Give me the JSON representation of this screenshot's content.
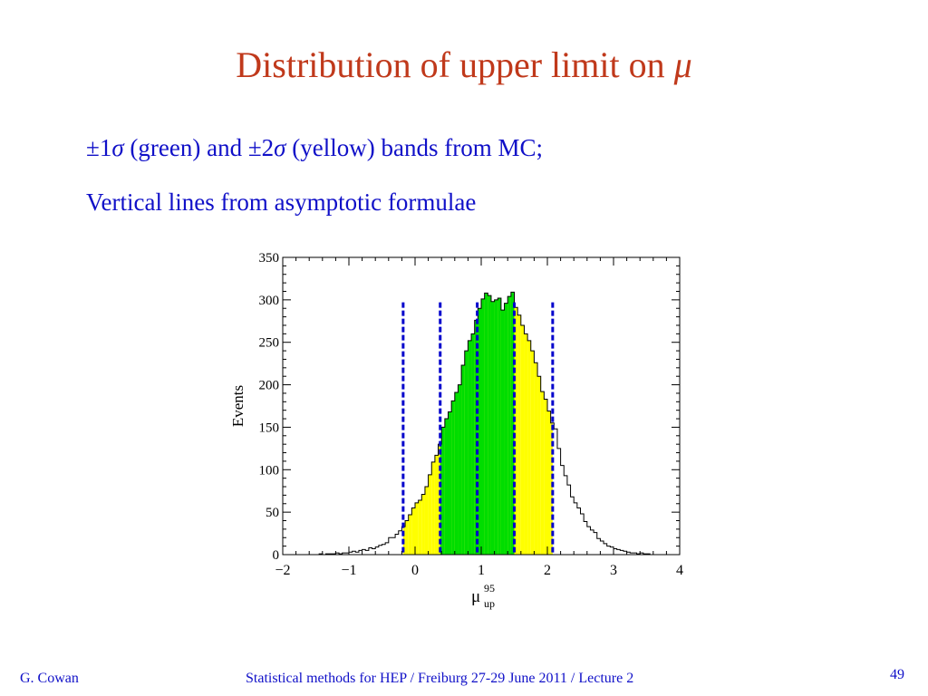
{
  "slide": {
    "title": "Distribution of upper limit on",
    "title_symbol": "μ",
    "bullet1": {
      "part1": "±1",
      "sym1": "σ",
      "part2": "(green) and",
      "part3": "±2",
      "sym2": "σ",
      "part4": "(yellow) bands from MC;"
    },
    "line2": "Vertical lines from asymptotic formulae",
    "footer_left": "G. Cowan",
    "footer_center": "Statistical methods for HEP / Freiburg 27-29 June 2011 / Lecture 2",
    "page_number": "49"
  },
  "chart_data": {
    "type": "bar",
    "xlabel": "μ",
    "xlabel_sup": "95",
    "xlabel_sub": "up",
    "ylabel": "Events",
    "xlim": [
      -2,
      4
    ],
    "ylim": [
      0,
      350
    ],
    "xticks": [
      "−2",
      "−1",
      "0",
      "1",
      "2",
      "3",
      "4"
    ],
    "yticks": [
      "0",
      "50",
      "100",
      "150",
      "200",
      "250",
      "300",
      "350"
    ],
    "bin_width": 0.05,
    "x_start": -1.45,
    "values": [
      1,
      0,
      1,
      1,
      1,
      2,
      1,
      2,
      2,
      3,
      4,
      3,
      5,
      6,
      5,
      8,
      7,
      9,
      11,
      12,
      14,
      20,
      20,
      24,
      28,
      33,
      40,
      47,
      55,
      61,
      64,
      71,
      80,
      94,
      109,
      117,
      130,
      150,
      160,
      168,
      181,
      191,
      200,
      223,
      240,
      252,
      260,
      276,
      290,
      301,
      308,
      305,
      298,
      300,
      302,
      288,
      296,
      304,
      309,
      291,
      282,
      270,
      260,
      252,
      240,
      226,
      210,
      192,
      183,
      169,
      155,
      148,
      125,
      105,
      93,
      82,
      68,
      61,
      55,
      48,
      39,
      33,
      29,
      26,
      19,
      16,
      13,
      10,
      9,
      7,
      6,
      5,
      4,
      3,
      2,
      2,
      1,
      2,
      1,
      1
    ],
    "band_1sigma": [
      0.38,
      1.5
    ],
    "band_2sigma": [
      -0.18,
      2.08
    ],
    "band_colors": {
      "one_sigma": "#00dd00",
      "two_sigma": "#ffff00"
    },
    "vertical_lines": [
      -0.18,
      0.38,
      0.94,
      1.5,
      2.08
    ],
    "line_color": "#0000cc"
  }
}
